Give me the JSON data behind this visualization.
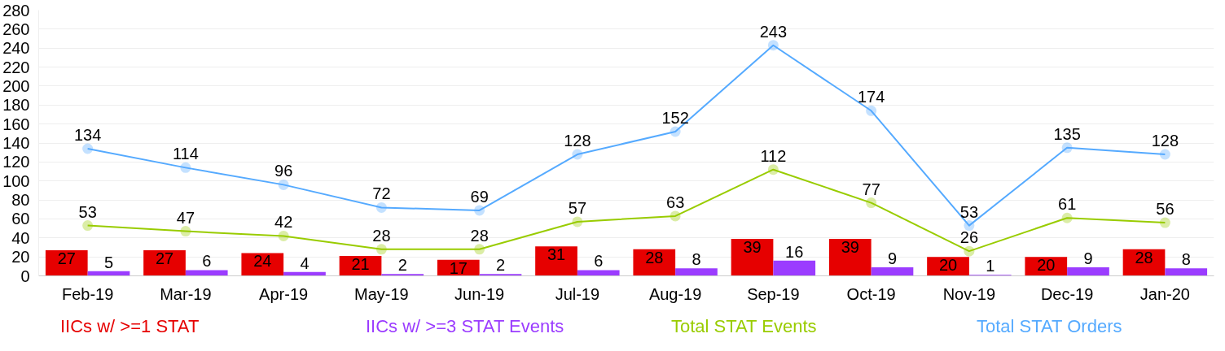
{
  "chart_data": {
    "type": "bar",
    "categories": [
      "Feb-19",
      "Mar-19",
      "Apr-19",
      "May-19",
      "Jun-19",
      "Jul-19",
      "Aug-19",
      "Sep-19",
      "Oct-19",
      "Nov-19",
      "Dec-19",
      "Jan-20"
    ],
    "series": [
      {
        "name": "IICs w/ >=1 STAT",
        "color": "#e60000",
        "values": [
          27,
          27,
          24,
          21,
          17,
          31,
          28,
          39,
          39,
          20,
          20,
          28
        ]
      },
      {
        "name": "IICs w/ >=3 STAT Events",
        "color": "#9b3cff",
        "values": [
          5,
          6,
          4,
          2,
          2,
          6,
          8,
          16,
          9,
          1,
          9,
          8
        ]
      },
      {
        "name": "Total STAT Events",
        "type": "line",
        "color": "#99cc00",
        "values": [
          53,
          47,
          42,
          28,
          28,
          57,
          63,
          112,
          77,
          26,
          61,
          56
        ]
      },
      {
        "name": "Total STAT Orders",
        "type": "line",
        "color": "#55aaff",
        "values": [
          134,
          114,
          96,
          72,
          69,
          128,
          152,
          243,
          174,
          53,
          135,
          128
        ]
      }
    ],
    "ylim": [
      0,
      280
    ],
    "yticks": [
      0,
      20,
      40,
      60,
      80,
      100,
      120,
      140,
      160,
      180,
      200,
      220,
      240,
      260,
      280
    ],
    "grid": "y",
    "legend": "bottom",
    "marker": "circle",
    "data_labels": true
  }
}
